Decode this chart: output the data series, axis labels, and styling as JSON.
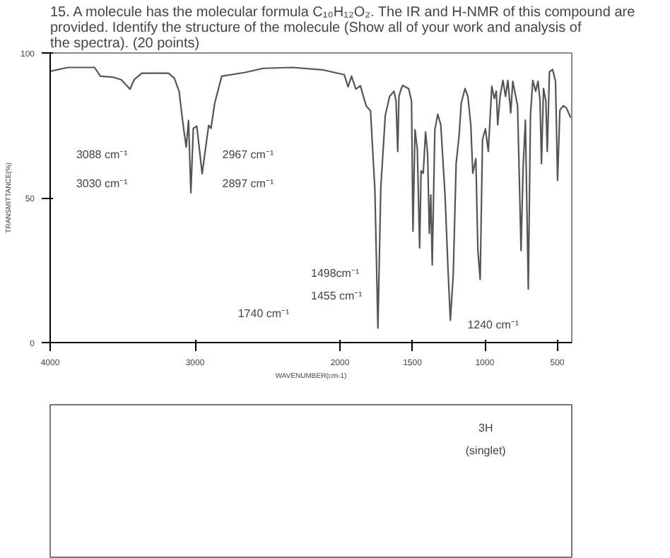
{
  "chart_data": [
    {
      "type": "line",
      "title": "15. A molecule has the molecular formula C₁₀H₁₂O₂. The IR and H-NMR of this compound are provided. Identify the structure of the molecule (Show all of your work and analysis of the spectra). (20 points)",
      "xlabel": "WAVENUMBER(cm-1)",
      "ylabel": "TRANSMITTANCE(%)",
      "xlim": [
        4000,
        400
      ],
      "ylim": [
        0,
        100
      ],
      "xticks": [
        4000,
        3000,
        2000,
        1500,
        1000,
        500
      ],
      "yticks": [
        0,
        50,
        100
      ],
      "grid": false,
      "marker": "none",
      "line_style": "solid",
      "series": [
        {
          "color": "#555555",
          "x": [
            4000,
            3878,
            3694,
            3653,
            3571,
            3510,
            3449,
            3420,
            3367,
            3184,
            3143,
            3110,
            3082,
            3061,
            3045,
            3029,
            3012,
            2988,
            2951,
            2931,
            2906,
            2890,
            2865,
            2816,
            2653,
            2531,
            2327,
            2122,
            1970,
            1944,
            1920,
            1890,
            1859,
            1819,
            1789,
            1759,
            1738,
            1718,
            1687,
            1657,
            1627,
            1613,
            1601,
            1593,
            1577,
            1567,
            1526,
            1506,
            1496,
            1482,
            1466,
            1450,
            1440,
            1425,
            1409,
            1395,
            1383,
            1373,
            1363,
            1345,
            1325,
            1304,
            1274,
            1254,
            1238,
            1218,
            1198,
            1177,
            1163,
            1137,
            1117,
            1097,
            1083,
            1062,
            1048,
            1032,
            1016,
            996,
            976,
            952,
            935,
            921,
            911,
            895,
            875,
            857,
            841,
            821,
            807,
            774,
            750,
            736,
            720,
            700,
            685,
            669,
            649,
            633,
            619,
            609,
            595,
            579,
            569,
            554,
            532,
            512,
            498,
            482,
            458,
            437,
            407
          ],
          "values": [
            93.7,
            95,
            95,
            92,
            91.7,
            90.8,
            87.5,
            90.8,
            93,
            93,
            91.3,
            86.7,
            75,
            67.5,
            76.7,
            51.7,
            74,
            74.7,
            58.3,
            65.8,
            75,
            74,
            82.5,
            92,
            93.3,
            94.7,
            95,
            94.2,
            92.5,
            88.3,
            92,
            87.5,
            88.7,
            81.7,
            80,
            53,
            5,
            53.5,
            78.5,
            85,
            86.8,
            83.5,
            66,
            85,
            87.7,
            88.8,
            87.7,
            83.5,
            38.5,
            73.5,
            66.8,
            32.7,
            59.3,
            58.5,
            72.7,
            65.2,
            37.7,
            51,
            26.8,
            73.5,
            78.8,
            75.2,
            50.2,
            25.2,
            7.7,
            23.5,
            61.8,
            71.8,
            82.7,
            87.7,
            85,
            75.2,
            58.5,
            63.5,
            31.8,
            21.8,
            70.2,
            73.8,
            66,
            88.5,
            84.3,
            86.8,
            75.2,
            85,
            90.5,
            85,
            90.5,
            79.3,
            90.2,
            81.8,
            31.8,
            60.2,
            76.8,
            18.5,
            78.5,
            90.5,
            86.8,
            90.2,
            83.5,
            61.8,
            87.7,
            83.5,
            66,
            93.5,
            94.3,
            90.2,
            56,
            80.2,
            81.8,
            81,
            77.7
          ]
        }
      ],
      "annotations": [
        "3088 cm⁻¹",
        "3030 cm⁻¹",
        "2967 cm⁻¹",
        "2897 cm⁻¹",
        "1740 cm⁻¹",
        "1498cm⁻¹",
        "1455 cm⁻¹",
        "1240 cm⁻¹"
      ]
    },
    {
      "type": "other",
      "annotations": [
        "3H",
        "(singlet)"
      ]
    }
  ]
}
